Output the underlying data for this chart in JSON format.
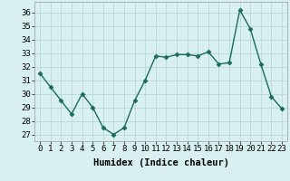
{
  "x": [
    0,
    1,
    2,
    3,
    4,
    5,
    6,
    7,
    8,
    9,
    10,
    11,
    12,
    13,
    14,
    15,
    16,
    17,
    18,
    19,
    20,
    21,
    22,
    23
  ],
  "y": [
    31.5,
    30.5,
    29.5,
    28.5,
    30.0,
    29.0,
    27.5,
    27.0,
    27.5,
    29.5,
    31.0,
    32.8,
    32.7,
    32.9,
    32.9,
    32.8,
    33.1,
    32.2,
    32.3,
    36.2,
    34.8,
    32.2,
    29.8,
    28.9
  ],
  "line_color": "#1a6b5a",
  "marker": "D",
  "marker_size": 2.5,
  "bg_color": "#d8f0ef",
  "grid_color": "#b8d8d5",
  "xlabel": "Humidex (Indice chaleur)",
  "ylim": [
    26.5,
    36.8
  ],
  "xlim": [
    -0.5,
    23.5
  ],
  "yticks": [
    27,
    28,
    29,
    30,
    31,
    32,
    33,
    34,
    35,
    36
  ],
  "xticks": [
    0,
    1,
    2,
    3,
    4,
    5,
    6,
    7,
    8,
    9,
    10,
    11,
    12,
    13,
    14,
    15,
    16,
    17,
    18,
    19,
    20,
    21,
    22,
    23
  ],
  "tick_fontsize": 6.5,
  "xlabel_fontsize": 7.5,
  "line_width": 1.0
}
